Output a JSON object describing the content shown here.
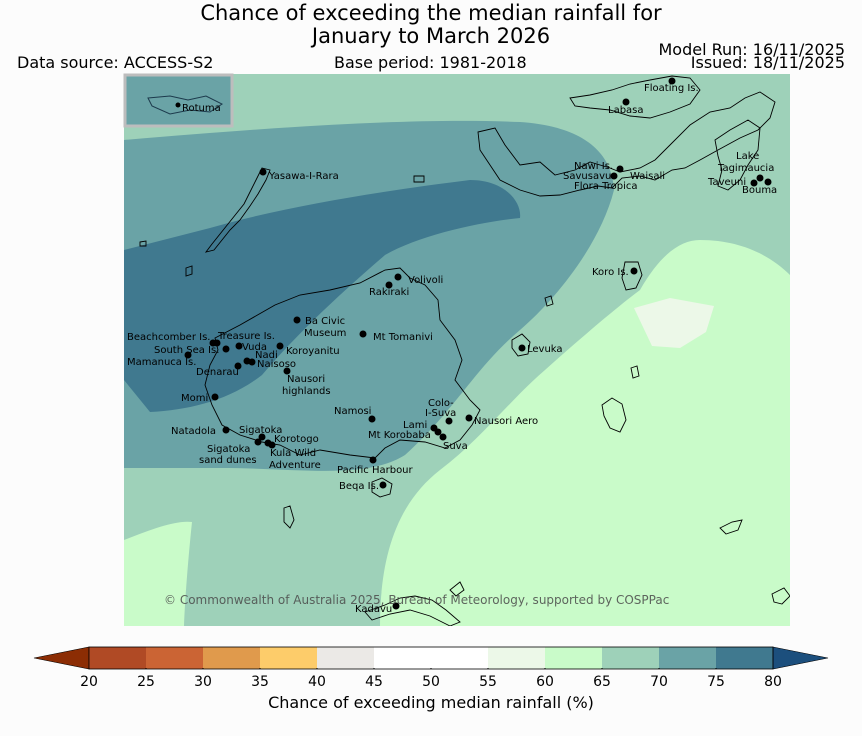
{
  "title": {
    "line1": "Chance of exceeding the median rainfall for",
    "line2": "January to March 2026"
  },
  "header": {
    "data_source": "Data source: ACCESS-S2",
    "base_period": "Base period: 1981-2018",
    "model_run": "Model Run: 16/11/2025",
    "issued": "Issued: 18/11/2025"
  },
  "inset": {
    "label": "Rotuma"
  },
  "places": [
    "Floating Is.",
    "Labasa",
    "Yasawa-I-Rara",
    "Nawi Is.",
    "Savusavu",
    "Waisali",
    "Flora Tropica",
    "Lake",
    "Tagimaucia",
    "Taveuni",
    "Bouma",
    "Volivoli",
    "Rakiraki",
    "Koro Is.",
    "Beachcomber Is.",
    "Treasure Is.",
    "South Sea Is.",
    "Vuda",
    "Mamanuca Is.",
    "Nadi",
    "Naisoso",
    "Denarau",
    "Ba Civic",
    "Museum",
    "Mt Tomanivi",
    "Koroyanitu",
    "Nausori",
    "highlands",
    "Levuka",
    "Momi",
    "Namosi",
    "Colo-",
    "I-Suva",
    "Nausori Aero",
    "Lami",
    "Mt Korobaba",
    "Suva",
    "Natadola",
    "Sigatoka",
    "Korotogo",
    "Sigatoka",
    "sand dunes",
    "Kula Wild",
    "Adventure",
    "Pacific Harbour",
    "Beqa Is.",
    "Kadavu"
  ],
  "copyright": "© Commonwealth of Australia 2025, Bureau of Meteorology, supported by COSPPac",
  "colorbar": {
    "label": "Chance of exceeding median rainfall (%)",
    "ticks": [
      "20",
      "25",
      "30",
      "35",
      "40",
      "45",
      "50",
      "55",
      "60",
      "65",
      "70",
      "75",
      "80"
    ],
    "colors": [
      "#8c2d04",
      "#b04a25",
      "#cb6434",
      "#e09a4c",
      "#fdcc6a",
      "#ebe9e6",
      "#ffffff",
      "#ffffff",
      "#ecf8e8",
      "#c9fbc9",
      "#9ed1b9",
      "#6aa3a6",
      "#40798f",
      "#1c4f7d"
    ]
  },
  "chart_data": {
    "type": "heatmap",
    "title": "Chance of exceeding the median rainfall for January to March 2026",
    "units": "%",
    "categories": [
      "20-25",
      "25-30",
      "30-35",
      "35-40",
      "40-45",
      "45-50",
      "50-55",
      "55-60",
      "60-65",
      "65-70",
      "70-75",
      "75-80"
    ],
    "colorbar_range": [
      20,
      80
    ],
    "regions_present": [
      {
        "range": "75-80",
        "area": "western Viti Levu, Yasawa group and Bligh Water"
      },
      {
        "range": "70-75",
        "area": "central Viti Levu and Vanua Levu"
      },
      {
        "range": "65-70",
        "area": "north, south-west and east of the domain"
      },
      {
        "range": "60-65",
        "area": "south-east of Viti Levu, Lomaiviti, Lau waters and south-west corner"
      },
      {
        "range": "55-60",
        "area": "small area south of Koro"
      }
    ]
  }
}
